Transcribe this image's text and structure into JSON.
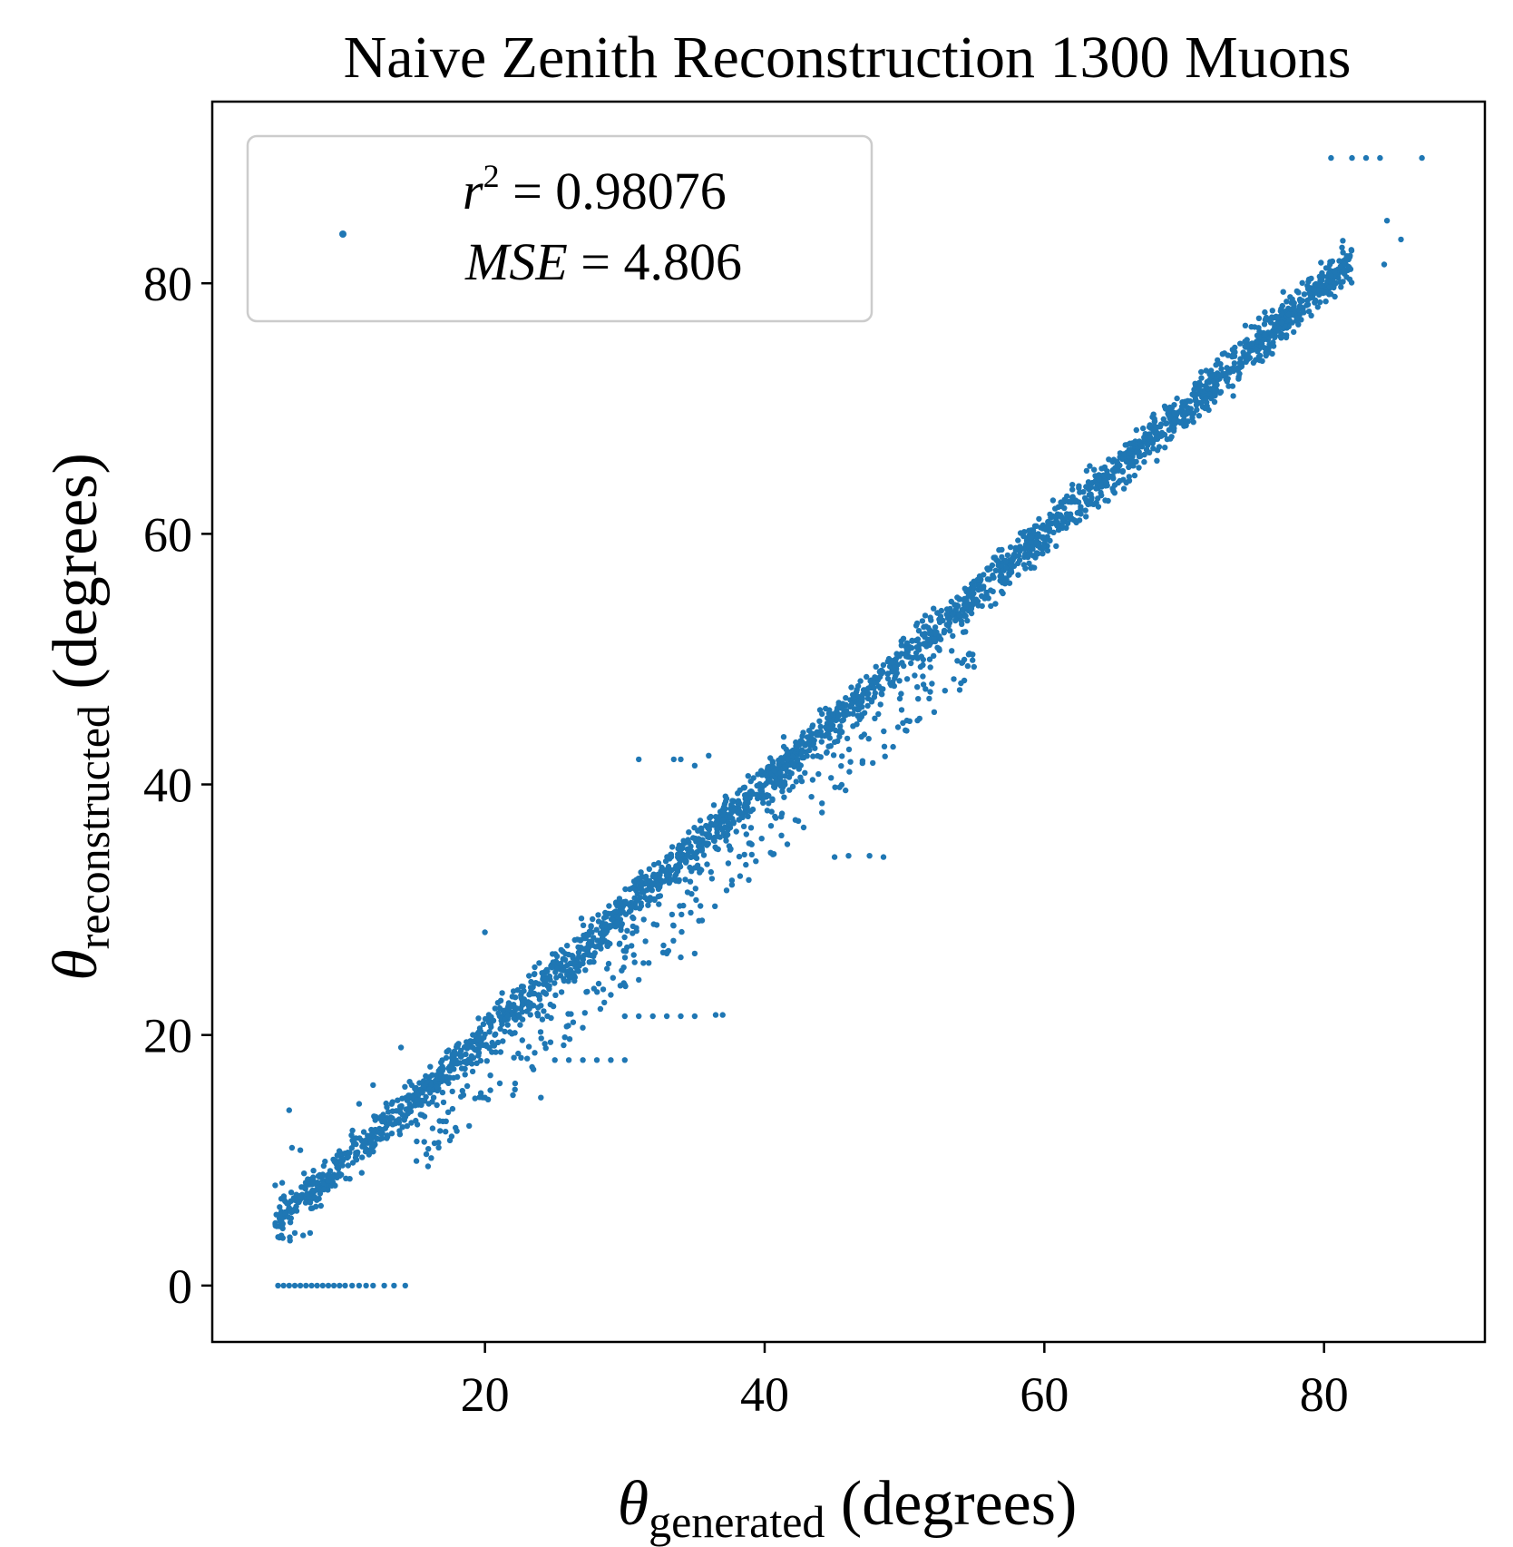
{
  "chart_data": {
    "type": "scatter",
    "title": "Naive Zenith Reconstruction  1300 Muons",
    "xlabel": {
      "symbol": "θ",
      "subscript": "generated",
      "units": " (degrees)"
    },
    "ylabel": {
      "symbol": "θ",
      "subscript": "reconstructed",
      "units": " (degrees)"
    },
    "xlim": [
      0.5,
      91.5
    ],
    "ylim": [
      -4.5,
      94.5
    ],
    "xticks": [
      "20",
      "40",
      "60",
      "80"
    ],
    "yticks": [
      "0",
      "20",
      "40",
      "60",
      "80"
    ],
    "xtick_values": [
      20,
      40,
      60,
      80
    ],
    "ytick_values": [
      0,
      20,
      40,
      60,
      80
    ],
    "grid": false,
    "legend_position": "top-left",
    "series": [
      {
        "legend_line1": {
          "var": "r",
          "sup": "2",
          "rest": " = 0.98076"
        },
        "legend_line2": {
          "var": "MSE",
          "rest": " = 4.806"
        },
        "color": "#1f77b4",
        "main_band": {
          "x_start": 5,
          "x_end": 82,
          "slope": 1.0,
          "intercept": 0,
          "spread_deg": 1.6
        },
        "outlier_points": [
          [
            5.2,
            0
          ],
          [
            5.6,
            0
          ],
          [
            6.0,
            0
          ],
          [
            6.4,
            0
          ],
          [
            6.8,
            0
          ],
          [
            7.2,
            0
          ],
          [
            7.6,
            0
          ],
          [
            8.0,
            0
          ],
          [
            8.4,
            0
          ],
          [
            8.8,
            0
          ],
          [
            9.2,
            0
          ],
          [
            9.6,
            0
          ],
          [
            10.0,
            0
          ],
          [
            10.5,
            0
          ],
          [
            11.0,
            0
          ],
          [
            11.5,
            0
          ],
          [
            12.0,
            0
          ],
          [
            12.8,
            0
          ],
          [
            13.5,
            0
          ],
          [
            14.3,
            0
          ],
          [
            5.0,
            8
          ],
          [
            5.5,
            8.2
          ],
          [
            6.0,
            6
          ],
          [
            6.4,
            4.2
          ],
          [
            7.0,
            4.0
          ],
          [
            7.5,
            4.2
          ],
          [
            6.2,
            11
          ],
          [
            6.8,
            10.8
          ],
          [
            6.0,
            14.0
          ],
          [
            30,
            21.5
          ],
          [
            31,
            21.5
          ],
          [
            32,
            21.5
          ],
          [
            33,
            21.5
          ],
          [
            34,
            21.5
          ],
          [
            35,
            21.5
          ],
          [
            36.5,
            21.6
          ],
          [
            37.0,
            21.6
          ],
          [
            25,
            18
          ],
          [
            26,
            18
          ],
          [
            27,
            18
          ],
          [
            28,
            18
          ],
          [
            29,
            18
          ],
          [
            30,
            18
          ],
          [
            24,
            15
          ],
          [
            22,
            15.2
          ],
          [
            20,
            15.0
          ],
          [
            45,
            34.2
          ],
          [
            46,
            34.3
          ],
          [
            47.5,
            34.3
          ],
          [
            48.5,
            34.2
          ],
          [
            33,
            26.5
          ],
          [
            34,
            26.2
          ],
          [
            35,
            26.5
          ],
          [
            30,
            24
          ],
          [
            31,
            24.4
          ],
          [
            29,
            23.2
          ],
          [
            31,
            42
          ],
          [
            33.5,
            42
          ],
          [
            36,
            42.3
          ],
          [
            34,
            42
          ],
          [
            35,
            41.5
          ],
          [
            80.5,
            90
          ],
          [
            82,
            90
          ],
          [
            83,
            90
          ],
          [
            84,
            90
          ],
          [
            87,
            90
          ],
          [
            85.5,
            83.5
          ],
          [
            84.5,
            85
          ],
          [
            84.3,
            81.5
          ],
          [
            20,
            28.2
          ],
          [
            17.5,
            17.5
          ],
          [
            14,
            19
          ],
          [
            11,
            14.5
          ],
          [
            12,
            16
          ]
        ]
      }
    ]
  }
}
